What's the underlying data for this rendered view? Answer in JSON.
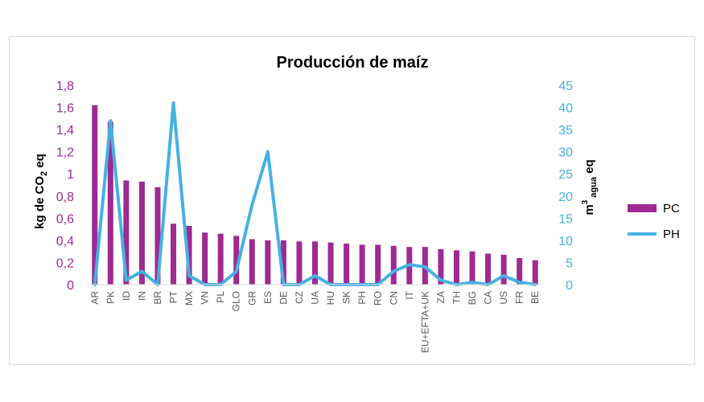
{
  "chart_data": {
    "type": "bar+line",
    "title": "Producción de maíz",
    "categories": [
      "AR",
      "PK",
      "ID",
      "IN",
      "BR",
      "PT",
      "MX",
      "VN",
      "PL",
      "GLO",
      "GR",
      "ES",
      "DE",
      "CZ",
      "UA",
      "HU",
      "SK",
      "PH",
      "RO",
      "CN",
      "IT",
      "EU+EFTA+UK",
      "ZA",
      "TH",
      "BG",
      "CA",
      "US",
      "FR",
      "BE"
    ],
    "series": [
      {
        "name": "PC",
        "type": "bar",
        "axis": "left",
        "color": "#9e2a92",
        "values": [
          1.62,
          1.47,
          0.94,
          0.93,
          0.88,
          0.55,
          0.53,
          0.47,
          0.46,
          0.44,
          0.41,
          0.4,
          0.4,
          0.39,
          0.39,
          0.38,
          0.37,
          0.36,
          0.36,
          0.35,
          0.34,
          0.34,
          0.32,
          0.31,
          0.3,
          0.28,
          0.27,
          0.24,
          0.22
        ]
      },
      {
        "name": "PH",
        "type": "line",
        "axis": "right",
        "color": "#46b1e1",
        "values": [
          0,
          37,
          1,
          3,
          0,
          41,
          2,
          0,
          0,
          3,
          18,
          30,
          0,
          0,
          2,
          0,
          0,
          0,
          0,
          3,
          4.5,
          4,
          1,
          0,
          0.5,
          0,
          2,
          0.5,
          0
        ]
      }
    ],
    "y_left": {
      "label_parts": [
        "kg  de CO",
        "2",
        " eq"
      ],
      "range": [
        0,
        1.8
      ],
      "ticks": [
        "0",
        "0,2",
        "0,4",
        "0,6",
        "0,8",
        "1",
        "1,2",
        "1,4",
        "1,6",
        "1,8"
      ],
      "tick_color": "#9e2a92"
    },
    "y_right": {
      "label_parts": [
        "m",
        "3",
        " agua",
        " eq"
      ],
      "range": [
        0,
        45
      ],
      "ticks": [
        "0",
        "5",
        "10",
        "15",
        "20",
        "25",
        "30",
        "35",
        "40",
        "45"
      ],
      "tick_color": "#46b1e1"
    },
    "legend_placement": "right",
    "grid": false
  }
}
